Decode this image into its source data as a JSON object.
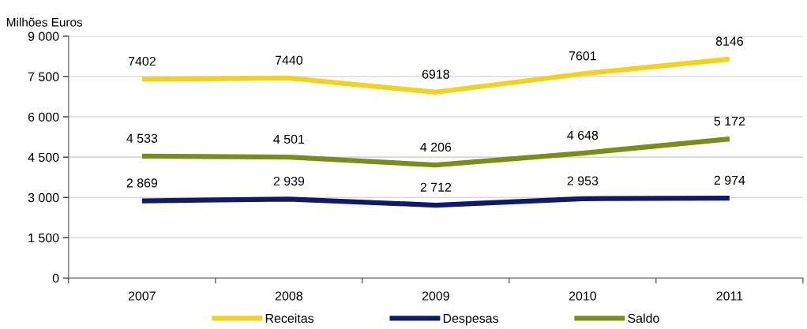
{
  "chart_data": {
    "type": "line",
    "ylabel": "Milhões Euros",
    "categories": [
      "2007",
      "2008",
      "2009",
      "2010",
      "2011"
    ],
    "ylim": [
      0,
      9000
    ],
    "yticks": [
      {
        "value": 0,
        "label": "0"
      },
      {
        "value": 1500,
        "label": "1 500"
      },
      {
        "value": 3000,
        "label": "3 000"
      },
      {
        "value": 4500,
        "label": "4 500"
      },
      {
        "value": 6000,
        "label": "6 000"
      },
      {
        "value": 7500,
        "label": "7 500"
      },
      {
        "value": 9000,
        "label": "9 000"
      }
    ],
    "grid": "y",
    "legend": "bottom",
    "marker": "none",
    "line_style": "solid",
    "series": [
      {
        "name": "Receitas",
        "color": "#f2d21b",
        "values": [
          7402,
          7440,
          6918,
          7601,
          8146
        ],
        "value_labels": [
          "7402",
          "7440",
          "6918",
          "7601",
          "8146"
        ]
      },
      {
        "name": "Despesas",
        "color": "#0f1a6b",
        "values": [
          2869,
          2939,
          2712,
          2953,
          2974
        ],
        "value_labels": [
          "2 869",
          "2 939",
          "2 712",
          "2 953",
          "2 974"
        ]
      },
      {
        "name": "Saldo",
        "color": "#7b8c17",
        "values": [
          4533,
          4501,
          4206,
          4648,
          5172
        ],
        "value_labels": [
          "4 533",
          "4 501",
          "4 206",
          "4 648",
          "5 172"
        ]
      }
    ]
  }
}
